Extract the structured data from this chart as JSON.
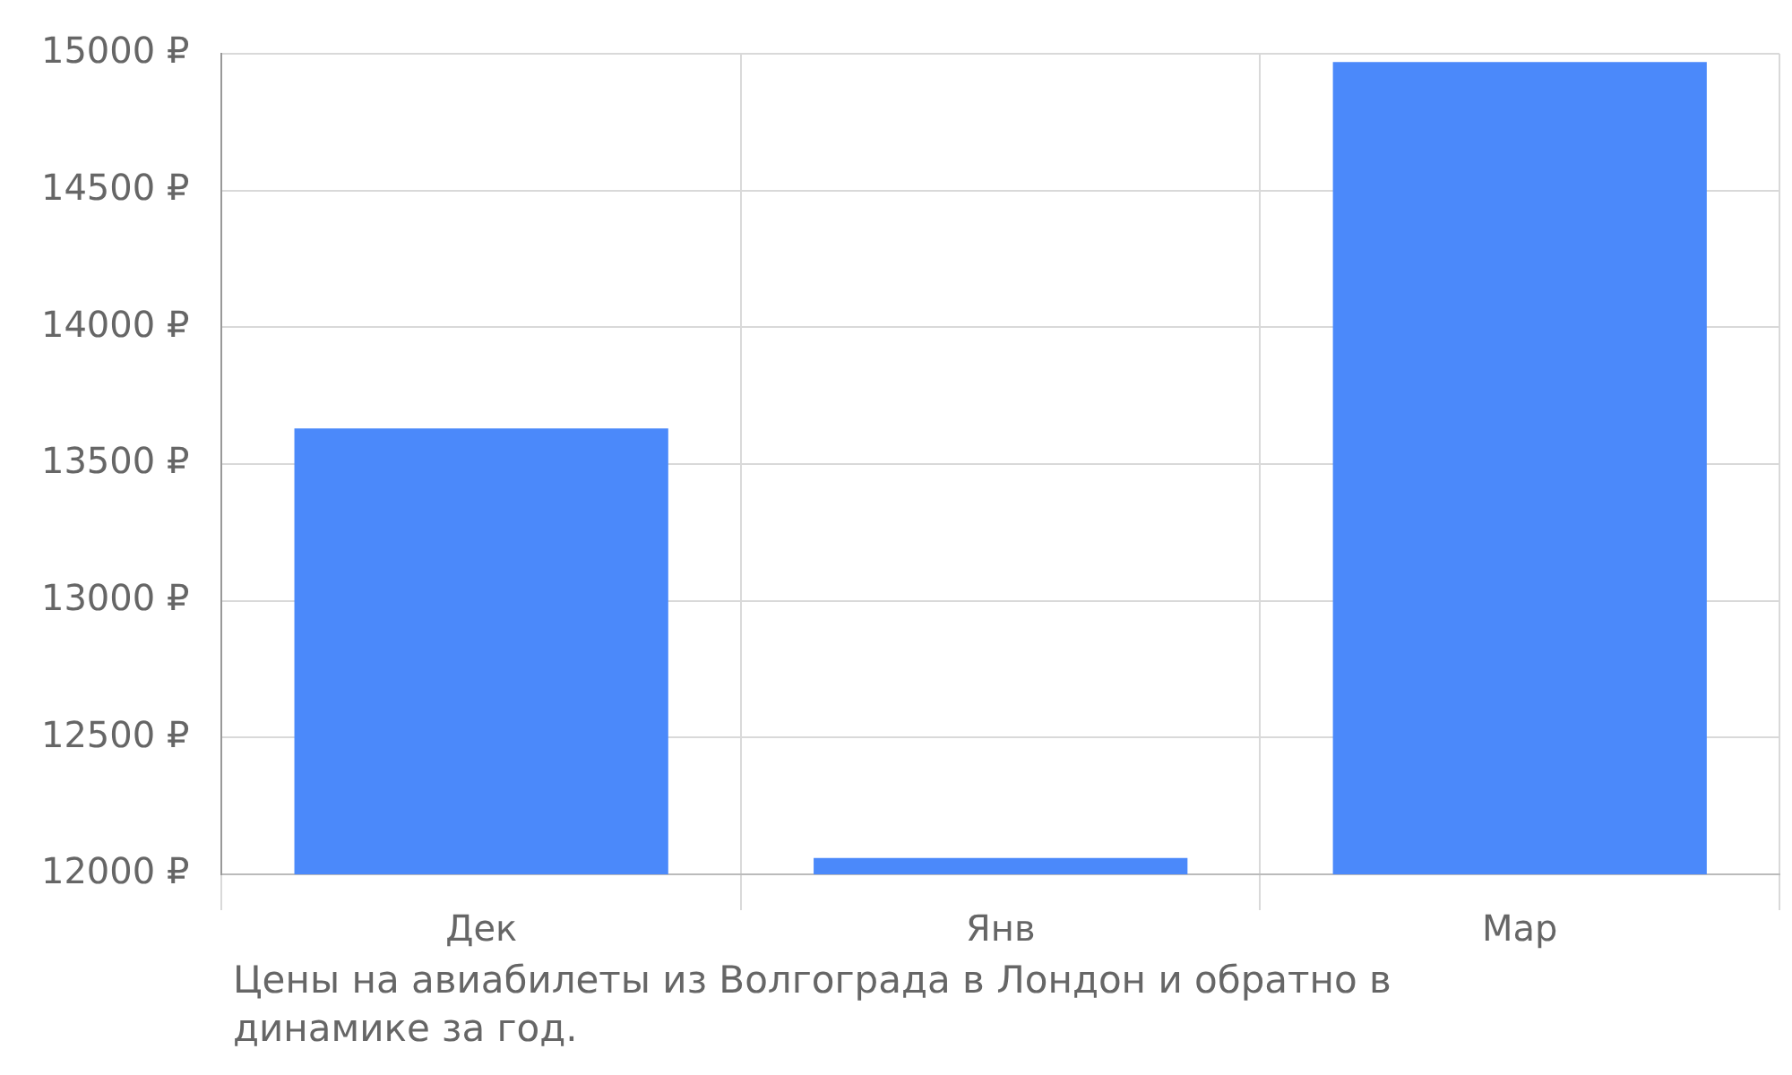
{
  "chart_data": {
    "type": "bar",
    "categories": [
      "Дек",
      "Янв",
      "Мар"
    ],
    "values": [
      13630,
      12060,
      14970
    ],
    "color": "#4b89fa",
    "ylim": [
      12000,
      15000
    ],
    "yticks": [
      {
        "value": 12000,
        "label": "12000 ₽"
      },
      {
        "value": 12500,
        "label": "12500 ₽"
      },
      {
        "value": 13000,
        "label": "13000 ₽"
      },
      {
        "value": 13500,
        "label": "13500 ₽"
      },
      {
        "value": 14000,
        "label": "14000 ₽"
      },
      {
        "value": 14500,
        "label": "14500 ₽"
      },
      {
        "value": 15000,
        "label": "15000 ₽"
      }
    ],
    "grid": true,
    "legend": false,
    "annotations": [
      "Цены на авиабилеты из Волгограда в Лондон и обратно в динамике за год."
    ]
  }
}
